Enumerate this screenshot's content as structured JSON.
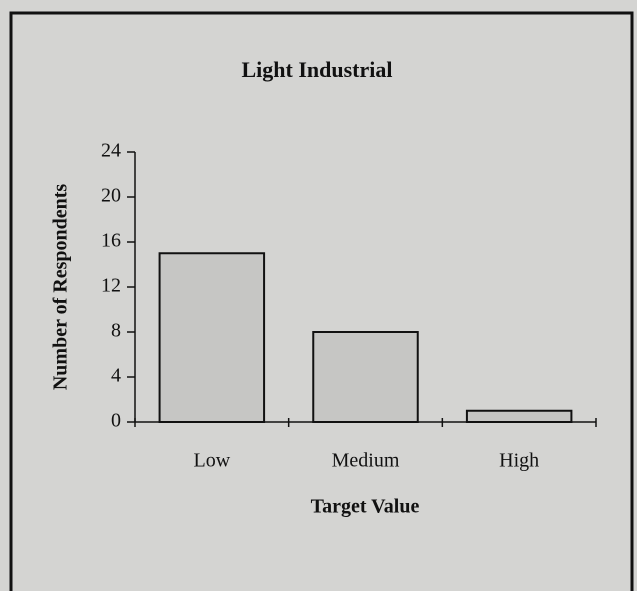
{
  "chart_data": {
    "type": "bar",
    "title": "Light Industrial",
    "x_label": "Target Value",
    "y_label": "Number of Respondents",
    "categories": [
      "Low",
      "Medium",
      "High"
    ],
    "values": [
      15,
      8,
      1
    ],
    "color": "#c6c6c4",
    "ylim": [
      0,
      24
    ],
    "yticks": [
      0,
      4,
      8,
      12,
      16,
      20,
      24
    ]
  }
}
